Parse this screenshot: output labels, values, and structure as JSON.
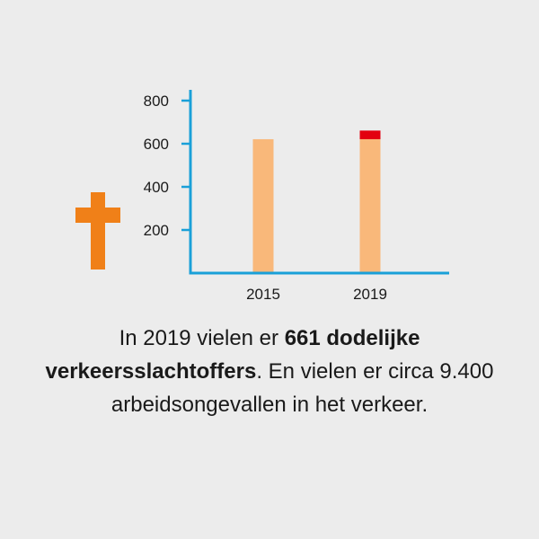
{
  "colors": {
    "axis": "#1aa0d8",
    "bar": "#f9b87a",
    "highlight": "#e3000f",
    "cross": "#f08018",
    "text": "#1a1a1a",
    "background": "#ececec"
  },
  "icon": "cross-icon",
  "caption": {
    "part1": "In 2019 vielen er ",
    "bold": "661 dodelijke verkeersslachtoffers",
    "part2": ". En vielen er circa 9.400 arbeidsongevallen in het verkeer."
  },
  "chart_data": {
    "type": "bar",
    "categories": [
      "2015",
      "2019"
    ],
    "values": [
      621,
      661
    ],
    "baseline_value": 621,
    "ylim": [
      0,
      800
    ],
    "yticks": [
      200,
      400,
      600,
      800
    ],
    "grid": false,
    "legend": "none"
  }
}
